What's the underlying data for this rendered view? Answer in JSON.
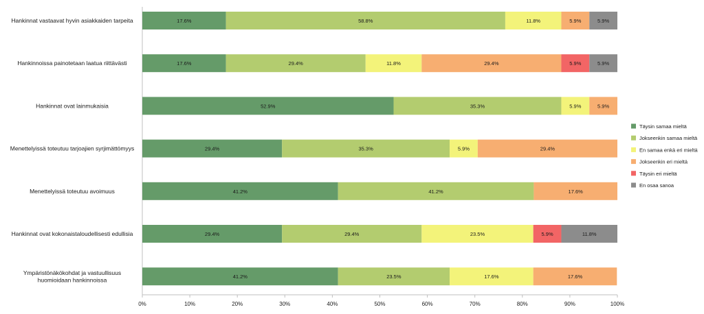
{
  "chart_data": {
    "type": "bar",
    "orientation": "horizontal",
    "stacked": true,
    "percent_stacked": true,
    "categories": [
      "Hankinnat vastaavat hyvin asiakkaiden tarpeita",
      "Hankinnoissa painotetaan laatua riittävästi",
      "Hankinnat ovat lainmukaisia",
      "Menettelyissä toteutuu tarjoajien syrjimättömyys",
      "Menettelyissä toteutuu avoimuus",
      "Hankinnat ovat kokonaistaloudellisesti edullisia",
      "Ympäristönäkökohdat ja vastuullisuus huomioidaan hankinnoissa"
    ],
    "series": [
      {
        "name": "Täysin samaa mieltä",
        "color": "#659b69",
        "values": [
          17.6,
          17.6,
          52.9,
          29.4,
          41.2,
          29.4,
          41.2
        ]
      },
      {
        "name": "Jokseenkin samaa mieltä",
        "color": "#b3cc6f",
        "values": [
          58.8,
          29.4,
          35.3,
          35.3,
          41.2,
          29.4,
          23.5
        ]
      },
      {
        "name": "En samaa enkä eri mieltä",
        "color": "#f3f37a",
        "values": [
          11.8,
          11.8,
          5.9,
          5.9,
          0,
          23.5,
          17.6
        ]
      },
      {
        "name": "Jokseenkin eri mieltä",
        "color": "#f7ae71",
        "values": [
          5.9,
          29.4,
          5.9,
          29.4,
          17.6,
          0,
          17.6
        ]
      },
      {
        "name": "Täysin eri mieltä",
        "color": "#f26565",
        "values": [
          0,
          5.9,
          0,
          0,
          0,
          5.9,
          0
        ]
      },
      {
        "name": "En osaa sanoa",
        "color": "#8c8c8c",
        "values": [
          5.9,
          5.9,
          0,
          0,
          0,
          11.8,
          0
        ]
      }
    ],
    "value_format": "%",
    "xlim": [
      0,
      100
    ],
    "xticks": [
      "0%",
      "10%",
      "20%",
      "30%",
      "40%",
      "50%",
      "60%",
      "70%",
      "80%",
      "90%",
      "100%"
    ],
    "grid": false,
    "legend_position": "right"
  }
}
